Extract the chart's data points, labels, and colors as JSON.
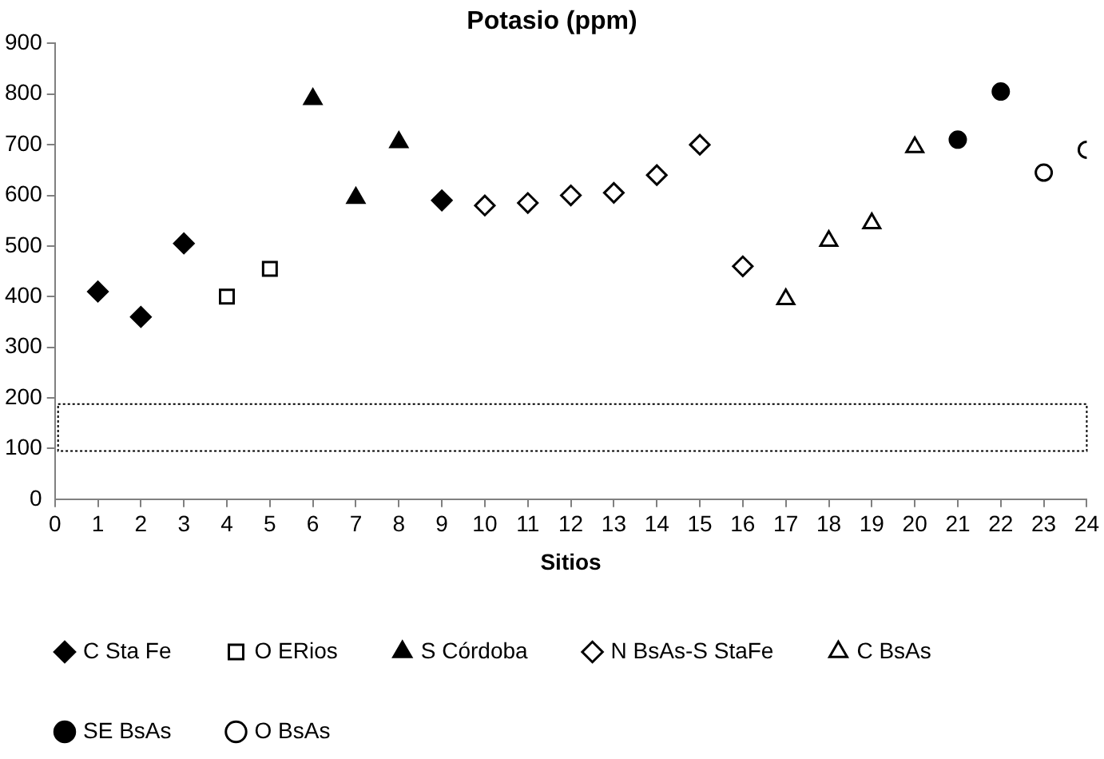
{
  "chart_data": {
    "type": "scatter",
    "title": "Potasio (ppm)",
    "xlabel": "Sitios",
    "xlim": [
      0,
      24
    ],
    "xticks": [
      0,
      1,
      2,
      3,
      4,
      5,
      6,
      7,
      8,
      9,
      10,
      11,
      12,
      13,
      14,
      15,
      16,
      17,
      18,
      19,
      20,
      21,
      22,
      23,
      24
    ],
    "ylim": [
      0,
      900
    ],
    "yticks": [
      0,
      100,
      200,
      300,
      400,
      500,
      600,
      700,
      800,
      900
    ],
    "grid": false,
    "legend": "bottom",
    "bands": [
      {
        "axis": "y",
        "from": 95,
        "to": 188,
        "color": "#ffffff"
      }
    ],
    "series": [
      {
        "name": "C Sta Fe",
        "color": "#000000",
        "marker": "diamond",
        "x": [
          1,
          2,
          3,
          9
        ],
        "values": [
          410,
          360,
          505,
          590
        ]
      },
      {
        "name": "O ERios",
        "color": "#ffffff",
        "marker": "square",
        "x": [
          4,
          5
        ],
        "values": [
          400,
          455
        ]
      },
      {
        "name": "S Córdoba",
        "color": "#000000",
        "marker": "triangle",
        "x": [
          6,
          7,
          8
        ],
        "values": [
          790,
          595,
          705
        ]
      },
      {
        "name": "N BsAs-S StaFe",
        "color": "#ffffff",
        "marker": "diamond",
        "x": [
          10,
          11,
          12,
          13,
          14,
          15,
          16
        ],
        "values": [
          580,
          585,
          600,
          605,
          640,
          700,
          460
        ]
      },
      {
        "name": "C BsAs",
        "color": "#ffffff",
        "marker": "triangle",
        "x": [
          17,
          18,
          19,
          20
        ],
        "values": [
          395,
          510,
          545,
          695
        ]
      },
      {
        "name": "SE BsAs",
        "color": "#000000",
        "marker": "circle",
        "x": [
          21,
          22
        ],
        "values": [
          710,
          805
        ]
      },
      {
        "name": "O BsAs",
        "color": "#ffffff",
        "marker": "circle",
        "x": [
          23,
          24
        ],
        "values": [
          645,
          690
        ]
      }
    ]
  }
}
